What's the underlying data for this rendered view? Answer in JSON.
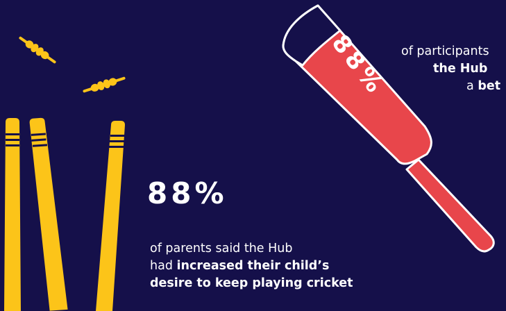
{
  "colors": {
    "background": "#15104a",
    "bat_red": "#e8464b",
    "stump_yellow": "#fcc419",
    "text": "#ffffff"
  },
  "bat_stat": "88%",
  "participants": {
    "line1": "of participants",
    "line2_bold": "the Hub",
    "line3_prefix": "a",
    "line3_bold": "bet"
  },
  "parents_stat": "88%",
  "parents": {
    "line1": "of parents said the Hub",
    "line2_prefix": "had",
    "line2_bold": "increased their child’s",
    "line3_bold": "desire to keep playing cricket"
  },
  "icons": [
    "flying-bail-icon",
    "cricket-stumps-icon",
    "cricket-bat-icon"
  ]
}
